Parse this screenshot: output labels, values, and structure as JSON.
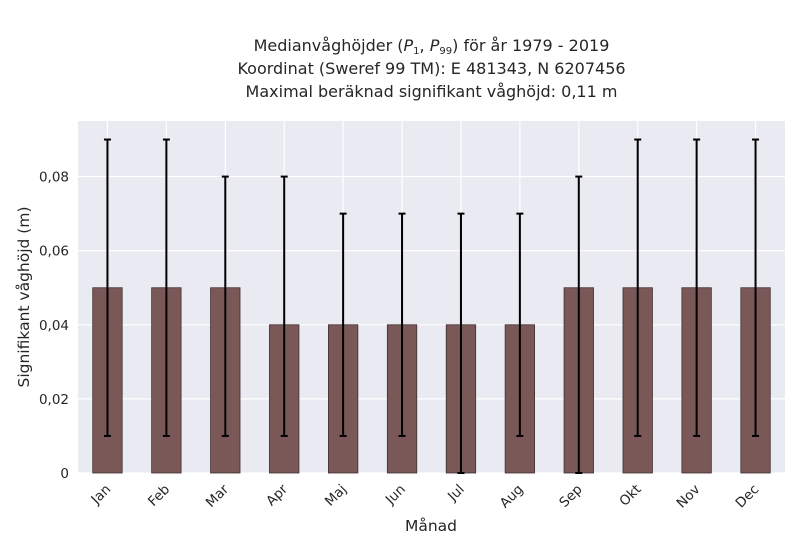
{
  "chart_data": {
    "type": "bar",
    "title": {
      "line1": {
        "prefix": "Medianvåghöjder (",
        "sym1": "P",
        "sub1": "1",
        "sep": ", ",
        "sym2": "P",
        "sub2": "99",
        "suffix": ") för år 1979 - 2019"
      },
      "line2": "Koordinat (Sweref 99 TM): E 481343, N 6207456",
      "line3": "Maximal beräknad signifikant våghöjd: 0,11 m"
    },
    "xlabel": "Månad",
    "ylabel": "Signifikant våghöjd (m)",
    "ylim": [
      0,
      0.095
    ],
    "yticks": [
      0,
      0.02,
      0.04,
      0.06,
      0.08
    ],
    "ytick_labels": [
      "0",
      "0,02",
      "0,04",
      "0,06",
      "0,08"
    ],
    "categories": [
      "Jan",
      "Feb",
      "Mar",
      "Apr",
      "Maj",
      "Jun",
      "Jul",
      "Aug",
      "Sep",
      "Okt",
      "Nov",
      "Dec"
    ],
    "values": [
      0.05,
      0.05,
      0.05,
      0.04,
      0.04,
      0.04,
      0.04,
      0.04,
      0.05,
      0.05,
      0.05,
      0.05
    ],
    "err_low": [
      0.01,
      0.01,
      0.01,
      0.01,
      0.01,
      0.01,
      0.0,
      0.01,
      0.0,
      0.01,
      0.01,
      0.01
    ],
    "err_high": [
      0.09,
      0.09,
      0.08,
      0.08,
      0.07,
      0.07,
      0.07,
      0.07,
      0.08,
      0.09,
      0.09,
      0.09
    ],
    "grid": true,
    "colors": {
      "bar": "#7a5858",
      "bar_edge": "#3f2f2f",
      "plot_bg": "#eaeaf2",
      "grid": "#ffffff",
      "errorbar": "#000000"
    }
  }
}
